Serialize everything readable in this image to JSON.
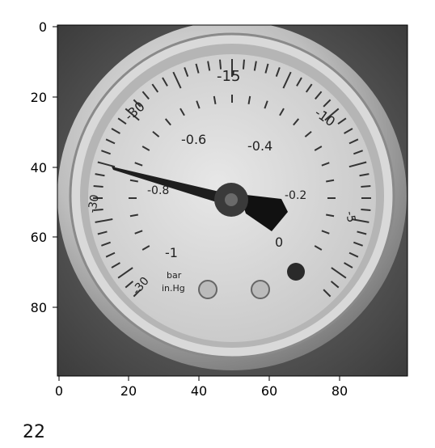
{
  "image": {
    "description_label": "",
    "axis": {
      "x_ticks": [
        "0",
        "20",
        "40",
        "60",
        "80"
      ],
      "y_ticks": [
        "0",
        "20",
        "40",
        "60",
        "80"
      ]
    },
    "gauge": {
      "labels_outer": [
        "-15",
        "-30",
        "-10",
        "-5",
        "0"
      ],
      "labels_inner": [
        "-0.6",
        "-0.4",
        "-0.8",
        "-0.2",
        "-1"
      ],
      "unit_top": "bar",
      "unit_bottom": "in.Hg",
      "left_label": "-30"
    }
  },
  "caption": "22"
}
